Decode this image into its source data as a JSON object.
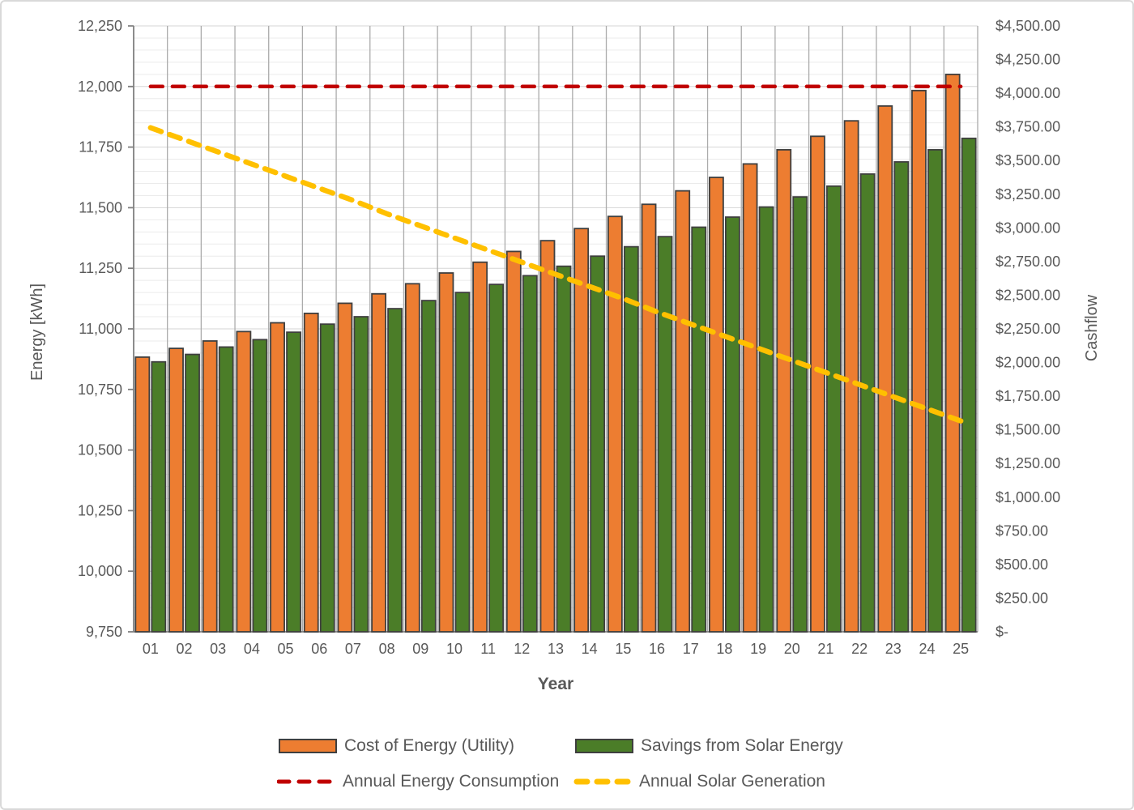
{
  "chart_data": {
    "type": "bar",
    "subtype": "combo-bar-line-dual-axis",
    "title": "",
    "x_axis": {
      "label": "Year",
      "categories": [
        "01",
        "02",
        "03",
        "04",
        "05",
        "06",
        "07",
        "08",
        "09",
        "10",
        "11",
        "12",
        "13",
        "14",
        "15",
        "16",
        "17",
        "18",
        "19",
        "20",
        "21",
        "22",
        "23",
        "24",
        "25"
      ]
    },
    "y_axis_left": {
      "label": "Energy [kWh]",
      "min": 9750,
      "max": 12250,
      "major_step": 250,
      "minor_step": 50,
      "tick_values": [
        9750,
        10000,
        10250,
        10500,
        10750,
        11000,
        11250,
        11500,
        11750,
        12000,
        12250
      ],
      "tick_labels": [
        "9,750",
        "10,000",
        "10,250",
        "10,500",
        "10,750",
        "11,000",
        "11,250",
        "11,500",
        "11,750",
        "12,000",
        "12,250"
      ]
    },
    "y_axis_right": {
      "label": "Cashflow",
      "min": 0,
      "max": 4500,
      "major_step": 250,
      "tick_values": [
        0,
        250,
        500,
        750,
        1000,
        1250,
        1500,
        1750,
        2000,
        2250,
        2500,
        2750,
        3000,
        3250,
        3500,
        3750,
        4000,
        4250,
        4500
      ],
      "tick_labels": [
        "$-",
        "$250.00",
        "$500.00",
        "$750.00",
        "$1,000.00",
        "$1,250.00",
        "$1,500.00",
        "$1,750.00",
        "$2,000.00",
        "$2,250.00",
        "$2,500.00",
        "$2,750.00",
        "$3,000.00",
        "$3,250.00",
        "$3,500.00",
        "$3,750.00",
        "$4,000.00",
        "$4,250.00",
        "$4,500.00"
      ]
    },
    "grid": {
      "horizontal_minor": true,
      "vertical_major": true
    },
    "legend_position": "bottom",
    "series": [
      {
        "name": "Cost of Energy (Utility)",
        "type": "bar",
        "axis": "right",
        "color": "#ED7D31",
        "border_color": "#3F3F3F",
        "values": [
          2040,
          2105,
          2160,
          2230,
          2295,
          2365,
          2440,
          2510,
          2585,
          2665,
          2745,
          2825,
          2905,
          2995,
          3085,
          3175,
          3275,
          3375,
          3475,
          3580,
          3680,
          3795,
          3905,
          4020,
          4140
        ]
      },
      {
        "name": "Savings from Solar Energy",
        "type": "bar",
        "axis": "right",
        "color": "#4B7D28",
        "border_color": "#3F3F3F",
        "values": [
          2005,
          2060,
          2115,
          2170,
          2225,
          2285,
          2340,
          2400,
          2460,
          2520,
          2580,
          2645,
          2715,
          2790,
          2860,
          2935,
          3005,
          3080,
          3155,
          3230,
          3310,
          3400,
          3490,
          3580,
          3665
        ]
      },
      {
        "name": "Annual Energy Consumption",
        "type": "line",
        "dash": true,
        "axis": "left",
        "color": "#C00000",
        "values": [
          12000,
          12000,
          12000,
          12000,
          12000,
          12000,
          12000,
          12000,
          12000,
          12000,
          12000,
          12000,
          12000,
          12000,
          12000,
          12000,
          12000,
          12000,
          12000,
          12000,
          12000,
          12000,
          12000,
          12000,
          12000
        ]
      },
      {
        "name": "Annual Solar Generation",
        "type": "line",
        "dash": true,
        "axis": "left",
        "color": "#FFC000",
        "values": [
          11830,
          11780,
          11730,
          11680,
          11630,
          11580,
          11530,
          11475,
          11425,
          11375,
          11325,
          11275,
          11225,
          11175,
          11125,
          11070,
          11020,
          10970,
          10920,
          10870,
          10820,
          10770,
          10720,
          10670,
          10620
        ]
      }
    ]
  },
  "legend": {
    "items": [
      {
        "label": "Cost of Energy (Utility)"
      },
      {
        "label": "Savings from Solar Energy"
      },
      {
        "label": "Annual Energy Consumption"
      },
      {
        "label": "Annual Solar Generation"
      }
    ]
  },
  "colors": {
    "bar_cost": "#ED7D31",
    "bar_savings": "#4B7D28",
    "line_consumption": "#C00000",
    "line_generation": "#FFC000",
    "bar_border": "#3F3F3F",
    "axis_line": "#808080",
    "grid_vertical": "#ABABAB",
    "grid_major": "#D6D6D6",
    "grid_minor": "#EBEBEB",
    "tick_text": "#595959"
  }
}
